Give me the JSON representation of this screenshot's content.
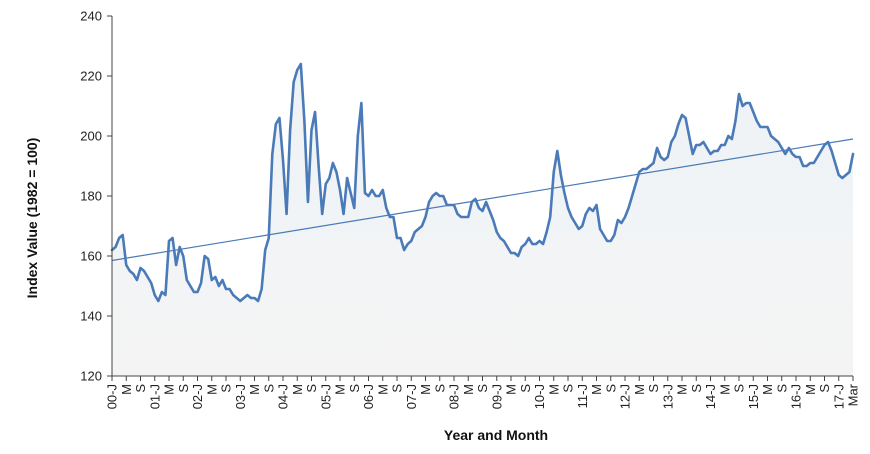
{
  "chart_data": {
    "type": "line",
    "title": "",
    "xlabel": "Year and Month",
    "ylabel": "Index Value (1982 = 100)",
    "ylim": [
      120,
      240
    ],
    "yticks": [
      120,
      140,
      160,
      180,
      200,
      220,
      240
    ],
    "grid": false,
    "legend": "none",
    "x_tick_labels": [
      "00-J",
      "M",
      "S",
      "01-J",
      "M",
      "S",
      "02-J",
      "M",
      "S",
      "03-J",
      "M",
      "S",
      "04-J",
      "M",
      "S",
      "05-J",
      "M",
      "S",
      "06-J",
      "M",
      "S",
      "07-J",
      "M",
      "S",
      "08-J",
      "M",
      "S",
      "09-J",
      "M",
      "S",
      "10-J",
      "M",
      "S",
      "11-J",
      "M",
      "S",
      "12-J",
      "M",
      "S",
      "13-J",
      "M",
      "S",
      "14-J",
      "M",
      "S",
      "15-J",
      "M",
      "S",
      "16-J",
      "M",
      "S",
      "17-J",
      "Mar"
    ],
    "colors": {
      "series": "#4a7ab8",
      "trend": "#4a7ab8",
      "fill_top": "#eef3f7",
      "fill_bottom": "#f4f4f4",
      "axis": "#444444"
    },
    "series": [
      {
        "values": [
          162,
          163,
          166,
          167,
          157,
          155,
          154,
          152,
          156,
          155,
          153,
          151,
          147,
          145,
          148,
          147,
          165,
          166,
          157,
          163,
          160,
          152,
          150,
          148,
          148,
          151,
          160,
          159,
          152,
          153,
          150,
          152,
          149,
          149,
          147,
          146,
          145,
          146,
          147,
          146,
          146,
          145,
          149,
          162,
          166,
          194,
          204,
          206,
          192,
          174,
          202,
          218,
          222,
          224,
          205,
          178,
          202,
          208,
          190,
          174,
          184,
          186,
          191,
          188,
          182,
          174,
          186,
          181,
          176,
          200,
          211,
          181,
          180,
          182,
          180,
          180,
          182,
          176,
          173,
          173,
          166,
          166,
          162,
          164,
          165,
          168,
          169,
          170,
          173,
          178,
          180,
          181,
          180,
          180,
          177,
          177,
          177,
          174,
          173,
          173,
          173,
          178,
          179,
          176,
          175,
          178,
          175,
          172,
          168,
          166,
          165,
          163,
          161,
          161,
          160,
          163,
          164,
          166,
          164,
          164,
          165,
          164,
          168,
          173,
          188,
          195,
          187,
          181,
          176,
          173,
          171,
          169,
          170,
          174,
          176,
          175,
          177,
          169,
          167,
          165,
          165,
          167,
          172,
          171,
          173,
          176,
          180,
          184,
          188,
          189,
          189,
          190,
          191,
          196,
          193,
          192,
          193,
          198,
          200,
          204,
          207,
          206,
          200,
          194,
          197,
          197,
          198,
          196,
          194,
          195,
          195,
          197,
          197,
          200,
          199,
          205,
          214,
          210,
          211,
          211,
          208,
          205,
          203,
          203,
          203,
          200,
          199,
          198,
          196,
          194,
          196,
          194,
          193,
          193,
          190,
          190,
          191,
          191,
          193,
          195,
          197,
          198,
          195,
          191,
          187,
          186,
          187,
          188,
          194
        ]
      }
    ],
    "trendline": {
      "start": 158.5,
      "end": 199
    }
  }
}
